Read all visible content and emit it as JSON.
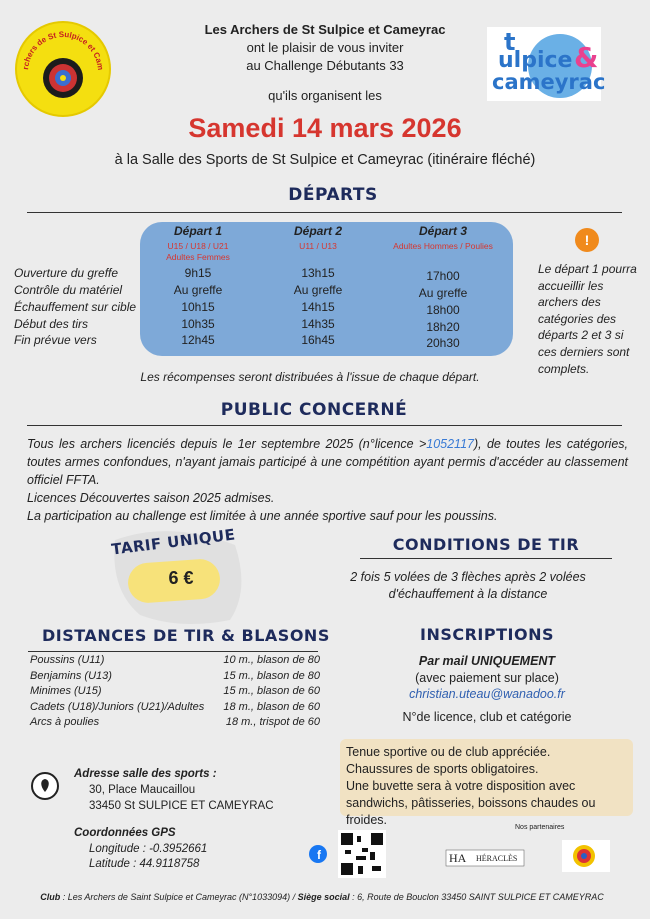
{
  "header": {
    "organizer": "Les Archers de St Sulpice et Cameyrac",
    "line1": "ont le plaisir de vous inviter",
    "line2": "au Challenge Débutants 33",
    "line3": "qu'ils organisent les",
    "date": "Samedi 14 mars 2026",
    "venue": "à la Salle des Sports de St Sulpice et Cameyrac (itinéraire fléché)"
  },
  "logos": {
    "club": "Les Archers de St Sulpice et Cameyrac",
    "town": [
      "t",
      "ulpice",
      "&",
      "cameyrac"
    ]
  },
  "departs": {
    "title": "DÉPARTS",
    "row_labels": [
      "Ouverture du greffe",
      "Contrôle du matériel",
      "Échauffement sur cible",
      "Début des tirs",
      "Fin prévue vers"
    ],
    "columns": [
      {
        "name": "Départ 1",
        "categories": [
          "U15 / U18 / U21",
          "Adultes Femmes"
        ],
        "times": [
          "9h15",
          "Au greffe",
          "10h15",
          "10h35",
          "12h45"
        ]
      },
      {
        "name": "Départ 2",
        "categories": [
          "U11 / U13"
        ],
        "times": [
          "13h15",
          "Au greffe",
          "14h15",
          "14h35",
          "16h45"
        ]
      },
      {
        "name": "Départ 3",
        "categories": [
          "Adultes Hommes / Poulies"
        ],
        "times": [
          "17h00",
          "Au greffe",
          "18h00",
          "18h20",
          "20h30"
        ]
      }
    ],
    "note": "Le départ 1 pourra accueillir les archers des catégories des départs 2 et 3 si ces derniers sont complets.",
    "rewards": "Les récompenses seront distribuées à l'issue de chaque départ."
  },
  "public": {
    "title": "PUBLIC CONCERNÉ",
    "text_before": "Tous les archers licenciés depuis le 1er septembre 2025 (n°licence >",
    "licence_link": "1052117",
    "text_after": "), de toutes les catégories, toutes armes confondues, n'ayant jamais participé à une compétition ayant permis d'accéder au classement officiel FFTA.",
    "lines": [
      "Licences Découvertes saison 2025 admises.",
      "La participation au challenge est limitée à une année sportive sauf pour les poussins."
    ]
  },
  "tarif": {
    "title": "TARIF UNIQUE",
    "price": "6 €"
  },
  "conditions": {
    "title": "CONDITIONS DE TIR",
    "lines": [
      "2 fois 5 volées de 3 flèches après 2 volées",
      "d'échauffement à la distance"
    ]
  },
  "distances": {
    "title": "DISTANCES DE TIR & BLASONS",
    "rows": [
      [
        "Poussins (U11)",
        "10 m., blason de 80"
      ],
      [
        "Benjamins (U13)",
        "15 m., blason de 80"
      ],
      [
        "Minimes (U15)",
        "15 m., blason de 60"
      ],
      [
        "Cadets (U18)/Juniors (U21)/Adultes",
        "18 m., blason de 60"
      ],
      [
        "Arcs à poulies",
        "18 m., trispot de 60"
      ]
    ]
  },
  "inscriptions": {
    "title": "INSCRIPTIONS",
    "mode": "Par mail UNIQUEMENT",
    "payment": "(avec paiement sur place)",
    "email": "christian.uteau@wanadoo.fr",
    "details": "N°de licence, club et catégorie"
  },
  "info_box": [
    "Tenue sportive ou de club appréciée.",
    "Chaussures de sports obligatoires.",
    "Une buvette sera à votre disposition avec sandwichs, pâtisseries, boissons chaudes ou froides."
  ],
  "address": {
    "title": "Adresse salle des sports :",
    "lines": [
      "30, Place Maucaillou",
      "33450 St SULPICE ET CAMEYRAC"
    ]
  },
  "gps": {
    "title": "Coordonnées GPS",
    "lines": [
      "Longitude : -0.3952661",
      "Latitude : 44.9118758"
    ]
  },
  "partners": {
    "title": "Nos partenaires",
    "heracles": [
      "HA",
      "HÉRACLÈS"
    ]
  },
  "footer": {
    "club_label": "Club",
    "club": ": Les Archers de Saint Sulpice et Cameyrac (N°1033094) /",
    "seat_label": "Siège social",
    "seat": ": 6, Route de Bouclon 33450 SAINT SULPICE ET CAMEYRAC"
  }
}
